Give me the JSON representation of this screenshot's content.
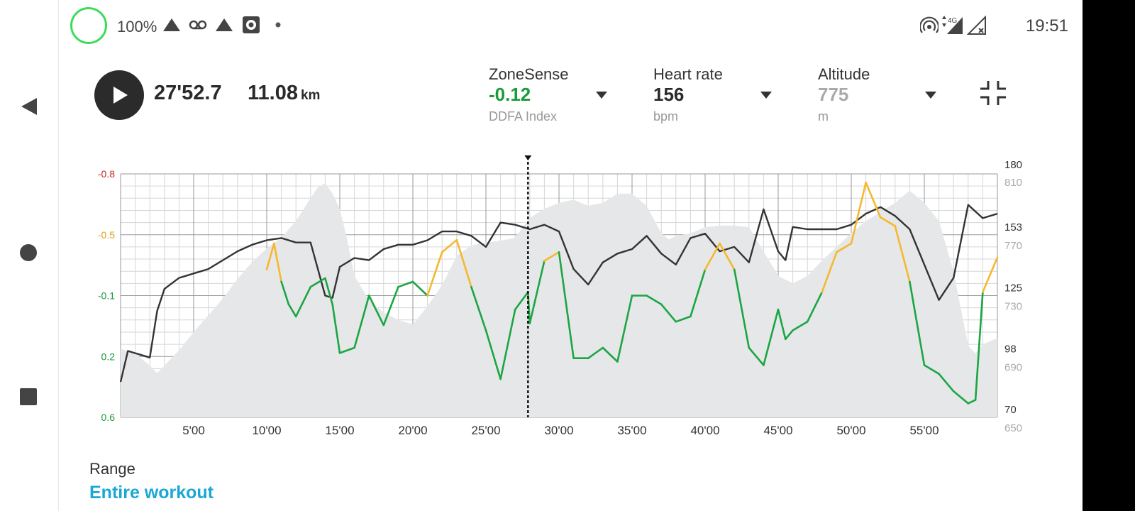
{
  "status_bar": {
    "battery": "100%",
    "time": "19:51",
    "network": "4G"
  },
  "nav_bar": {
    "buttons": [
      "back",
      "home",
      "recents"
    ]
  },
  "player": {
    "elapsed": "27'52.7",
    "distance": "11.08",
    "distance_unit": "km"
  },
  "metrics": [
    {
      "title": "ZoneSense",
      "value": "-0.12",
      "unit": "DDFA Index",
      "value_color": "#1a9b3a"
    },
    {
      "title": "Heart rate",
      "value": "156",
      "unit": "bpm",
      "value_color": "#2a2a2a"
    },
    {
      "title": "Altitude",
      "value": "775",
      "unit": "m",
      "value_color": "#aaaaaa"
    }
  ],
  "range": {
    "label": "Range",
    "value": "Entire workout"
  },
  "colors": {
    "green": "#1aa643",
    "yellow": "#f5b82e",
    "red": "#d52020",
    "hr": "#333333",
    "altitude_fill": "#e6e7e9",
    "accent": "#1aa7d6"
  },
  "chart_data": {
    "type": "line",
    "cursor_time_min": 27.88,
    "x_range_min": [
      0,
      60
    ],
    "x_ticks": [
      "5'00",
      "10'00",
      "15'00",
      "20'00",
      "25'00",
      "30'00",
      "35'00",
      "40'00",
      "45'00",
      "50'00",
      "55'00"
    ],
    "y_left": {
      "label": "ZoneSense DDFA Index",
      "range": [
        -0.8,
        0.6
      ],
      "ticks": [
        {
          "label": "-0.8",
          "color": "#c62828"
        },
        {
          "label": "-0.5",
          "color": "#e0a020"
        },
        {
          "label": "-0.1",
          "color": "#1a9b3a"
        },
        {
          "label": "0.2",
          "color": "#1a9b3a"
        },
        {
          "label": "0.6",
          "color": "#1a9b3a"
        }
      ]
    },
    "y_right_hr": {
      "label": "bpm",
      "range": [
        70,
        180
      ],
      "ticks": [
        "180",
        "153",
        "125",
        "98",
        "70"
      ]
    },
    "y_right_alt": {
      "label": "m",
      "range": [
        650,
        810
      ],
      "ticks": [
        "810",
        "770",
        "730",
        "690",
        "650"
      ]
    },
    "series": [
      {
        "name": "Altitude",
        "unit": "m",
        "x": [
          0,
          1,
          2,
          2.5,
          3,
          4,
          5,
          6,
          7,
          8,
          9,
          10,
          11,
          12,
          13,
          13.5,
          14,
          14.5,
          15,
          15.5,
          16,
          17,
          18,
          19,
          20,
          21,
          22,
          23,
          24,
          25,
          26,
          27,
          28,
          29,
          30,
          31,
          32,
          33,
          34,
          35,
          36,
          37,
          37.5,
          38,
          39,
          40,
          41,
          42,
          43,
          44,
          45,
          46,
          47,
          48,
          49,
          50,
          51,
          52,
          53,
          54,
          55,
          56,
          57,
          58,
          58.5,
          59,
          60
        ],
        "values": [
          695,
          692,
          684,
          679,
          684,
          694,
          706,
          717,
          728,
          741,
          752,
          761,
          768,
          779,
          794,
          801,
          804,
          797,
          787,
          767,
          743,
          727,
          719,
          714,
          711,
          723,
          737,
          756,
          763,
          765,
          766,
          768,
          781,
          787,
          791,
          793,
          789,
          791,
          797,
          797,
          789,
          771,
          767,
          769,
          771,
          775,
          776,
          776,
          775,
          759,
          743,
          738,
          743,
          753,
          762,
          771,
          779,
          785,
          791,
          799,
          791,
          779,
          746,
          697,
          692,
          698,
          702
        ]
      },
      {
        "name": "Heart rate",
        "unit": "bpm",
        "x": [
          0,
          0.5,
          1,
          1.5,
          2,
          2.5,
          3,
          4,
          5,
          6,
          7,
          8,
          9,
          10,
          11,
          12,
          13,
          14,
          14.5,
          15,
          16,
          17,
          18,
          19,
          20,
          21,
          22,
          23,
          24,
          25,
          26,
          27,
          28,
          29,
          30,
          31,
          32,
          33,
          34,
          35,
          36,
          37,
          38,
          39,
          40,
          41,
          42,
          43,
          44,
          45,
          45.5,
          46,
          47,
          48,
          49,
          50,
          51,
          52,
          53,
          54,
          55,
          56,
          57,
          58,
          59,
          60
        ],
        "values": [
          86,
          100,
          99,
          98,
          97,
          118,
          128,
          133,
          135,
          137,
          141,
          145,
          148,
          150,
          151,
          149,
          149,
          125,
          124,
          138,
          142,
          141,
          146,
          148,
          148,
          150,
          154,
          154,
          152,
          147,
          158,
          157,
          155,
          157,
          154,
          137,
          130,
          140,
          144,
          146,
          152,
          144,
          139,
          151,
          153,
          145,
          147,
          140,
          164,
          145,
          141,
          156,
          155,
          155,
          155,
          157,
          162,
          165,
          161,
          155,
          139,
          123,
          133,
          166,
          160,
          162
        ]
      },
      {
        "name": "ZoneSense",
        "unit": "DDFA Index",
        "x": [
          10,
          10.5,
          11,
          11.5,
          12,
          13,
          14,
          14.5,
          15,
          16,
          17,
          18,
          19,
          20,
          21,
          22,
          23,
          24,
          25,
          26,
          27,
          27.88,
          28,
          29,
          30,
          31,
          32,
          33,
          34,
          35,
          36,
          37,
          38,
          39,
          40,
          41,
          42,
          43,
          44,
          45,
          45.5,
          46,
          47,
          48,
          49,
          50,
          51,
          52,
          53,
          54,
          55,
          56,
          57,
          58,
          58.5,
          59,
          60
        ],
        "values": [
          -0.25,
          -0.4,
          -0.18,
          -0.05,
          0.02,
          -0.15,
          -0.2,
          -0.05,
          0.23,
          0.2,
          -0.1,
          0.07,
          -0.15,
          -0.18,
          -0.1,
          -0.35,
          -0.42,
          -0.15,
          0.1,
          0.38,
          -0.02,
          -0.12,
          0.06,
          -0.3,
          -0.35,
          0.26,
          0.26,
          0.2,
          0.28,
          -0.1,
          -0.1,
          -0.05,
          0.05,
          0.02,
          -0.25,
          -0.4,
          -0.25,
          0.2,
          0.3,
          -0.02,
          0.15,
          0.1,
          0.05,
          -0.12,
          -0.35,
          -0.4,
          -0.75,
          -0.55,
          -0.5,
          -0.18,
          0.3,
          0.35,
          0.45,
          0.52,
          0.5,
          -0.12,
          -0.32
        ]
      }
    ]
  }
}
